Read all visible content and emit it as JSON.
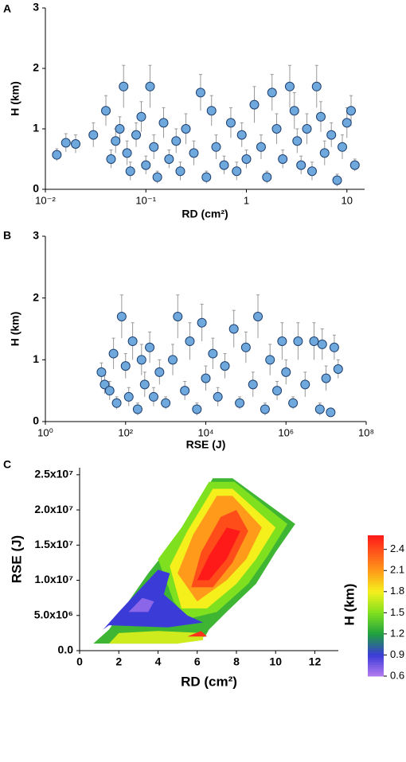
{
  "chart_data": [
    {
      "type": "scatter",
      "label": "A",
      "xlabel": "RD (cm²)",
      "ylabel": "H (km)",
      "xscale": "log",
      "xlim": [
        0.01,
        15
      ],
      "xticks": [
        {
          "value": 0.01,
          "label": "10⁻²"
        },
        {
          "value": 0.1,
          "label": "10⁻¹"
        },
        1,
        10
      ],
      "ylim": [
        0,
        3
      ],
      "yticks": [
        0,
        1,
        2,
        3
      ],
      "color": "#6fa8dc",
      "series": [
        {
          "x": [
            0.013,
            0.016,
            0.02,
            0.03,
            0.04,
            0.045,
            0.05,
            0.055,
            0.06,
            0.065,
            0.07,
            0.08,
            0.09,
            0.1,
            0.11,
            0.12,
            0.13,
            0.15,
            0.17,
            0.2,
            0.22,
            0.25,
            0.3,
            0.35,
            0.4,
            0.45,
            0.5,
            0.6,
            0.7,
            0.8,
            0.9,
            1.0,
            1.2,
            1.4,
            1.6,
            1.8,
            2.0,
            2.3,
            2.7,
            3.0,
            3.2,
            3.5,
            4.0,
            4.5,
            5.0,
            5.5,
            6.0,
            7.0,
            8.0,
            9.0,
            10.0,
            11.0,
            12.0
          ],
          "values": [
            0.57,
            0.77,
            0.75,
            0.9,
            1.3,
            0.5,
            0.8,
            1.0,
            1.7,
            0.6,
            0.3,
            0.9,
            1.2,
            0.4,
            1.7,
            0.7,
            0.2,
            1.1,
            0.5,
            0.8,
            0.3,
            1.0,
            0.6,
            1.6,
            0.2,
            1.3,
            0.7,
            0.4,
            1.1,
            0.3,
            0.9,
            0.5,
            1.4,
            0.7,
            0.2,
            1.6,
            1.0,
            0.5,
            1.7,
            1.3,
            0.8,
            0.4,
            1.0,
            0.3,
            1.7,
            1.2,
            0.6,
            0.9,
            0.15,
            0.7,
            1.1,
            1.3,
            0.4
          ],
          "errors": [
            0.1,
            0.15,
            0.15,
            0.2,
            0.25,
            0.15,
            0.2,
            0.2,
            0.35,
            0.2,
            0.15,
            0.2,
            0.25,
            0.15,
            0.35,
            0.2,
            0.1,
            0.25,
            0.15,
            0.2,
            0.15,
            0.25,
            0.2,
            0.3,
            0.1,
            0.25,
            0.2,
            0.15,
            0.25,
            0.15,
            0.2,
            0.15,
            0.3,
            0.2,
            0.1,
            0.3,
            0.25,
            0.15,
            0.35,
            0.3,
            0.2,
            0.15,
            0.25,
            0.15,
            0.35,
            0.25,
            0.2,
            0.2,
            0.1,
            0.2,
            0.25,
            0.25,
            0.1
          ]
        }
      ]
    },
    {
      "type": "scatter",
      "label": "B",
      "xlabel": "RSE (J)",
      "ylabel": "H (km)",
      "xscale": "log",
      "xlim": [
        1,
        100000000
      ],
      "xticks": [
        {
          "value": 1,
          "label": "10⁰"
        },
        {
          "value": 100,
          "label": "10²"
        },
        {
          "value": 10000,
          "label": "10⁴"
        },
        {
          "value": 1000000,
          "label": "10⁶"
        },
        {
          "value": 100000000,
          "label": "10⁸"
        }
      ],
      "ylim": [
        0,
        3
      ],
      "yticks": [
        0,
        1,
        2,
        3
      ],
      "color": "#6fa8dc",
      "series": [
        {
          "x": [
            25,
            30,
            40,
            50,
            60,
            80,
            100,
            120,
            150,
            200,
            250,
            300,
            400,
            500,
            700,
            1000,
            1500,
            2000,
            3000,
            4000,
            6000,
            8000,
            10000,
            15000,
            20000,
            30000,
            50000,
            70000,
            100000,
            150000,
            200000,
            300000,
            400000,
            600000,
            800000,
            1000000,
            1500000,
            2000000,
            3000000,
            5000000,
            7000000,
            8000000,
            10000000,
            13000000,
            16000000,
            20000000
          ],
          "values": [
            0.8,
            0.6,
            0.5,
            1.1,
            0.3,
            1.7,
            0.9,
            0.4,
            1.3,
            0.2,
            1.0,
            0.6,
            1.2,
            0.4,
            0.8,
            0.3,
            1.0,
            1.7,
            0.5,
            1.3,
            0.2,
            1.6,
            0.7,
            1.1,
            0.4,
            0.9,
            1.5,
            0.3,
            1.2,
            0.6,
            1.7,
            0.2,
            1.0,
            0.5,
            1.3,
            0.8,
            0.3,
            1.3,
            0.6,
            1.3,
            0.2,
            1.25,
            0.7,
            0.15,
            1.2,
            0.85
          ],
          "errors": [
            0.15,
            0.15,
            0.15,
            0.25,
            0.1,
            0.35,
            0.2,
            0.15,
            0.3,
            0.1,
            0.25,
            0.2,
            0.25,
            0.15,
            0.2,
            0.1,
            0.25,
            0.35,
            0.15,
            0.3,
            0.1,
            0.3,
            0.2,
            0.25,
            0.15,
            0.2,
            0.3,
            0.1,
            0.25,
            0.2,
            0.35,
            0.1,
            0.25,
            0.15,
            0.3,
            0.2,
            0.1,
            0.3,
            0.2,
            0.3,
            0.1,
            0.25,
            0.2,
            0.05,
            0.2,
            0.15
          ]
        }
      ]
    },
    {
      "type": "contour",
      "label": "C",
      "xlabel": "RD (cm²)",
      "ylabel": "RSE (J)",
      "xlim": [
        0,
        13.2
      ],
      "xticks": [
        0,
        2,
        4,
        6,
        8,
        10,
        12
      ],
      "ylim": [
        0,
        26000000
      ],
      "yticks": [
        {
          "value": 0,
          "label": "0.0"
        },
        {
          "value": 5000000,
          "label": "5.0x10⁶"
        },
        {
          "value": 10000000,
          "label": "1.0x10⁷"
        },
        {
          "value": 15000000,
          "label": "1.5x10⁷"
        },
        {
          "value": 20000000,
          "label": "2.0x10⁷"
        },
        {
          "value": 25000000,
          "label": "2.5x10⁷"
        }
      ],
      "colorbar": {
        "label": "H (km)",
        "lim": [
          0.6,
          2.6
        ],
        "ticks": [
          0.6,
          0.9,
          1.2,
          1.5,
          1.8,
          2.1,
          2.4
        ]
      },
      "regions": [
        {
          "level": 1.3,
          "rd": [
            0.7,
            1.5,
            2.5,
            3.5,
            4.5,
            5.5,
            6.8,
            7.8,
            11,
            10,
            9,
            7.5,
            6.6,
            6.4,
            5
          ],
          "rse": [
            1000000,
            3000000,
            7000000,
            11000000,
            14500000,
            18500000,
            24500000,
            24500000,
            18000000,
            14000000,
            9500000,
            5500000,
            3000000,
            2000000,
            1000000
          ]
        },
        {
          "level": 1.5,
          "rd": [
            4,
            5.2,
            6.6,
            7.9,
            10.6,
            9.6,
            8.6,
            7,
            5.5,
            4.8
          ],
          "rse": [
            13000000,
            17500000,
            24000000,
            24000000,
            18000000,
            13500000,
            9500000,
            5500000,
            4500000,
            7000000
          ]
        },
        {
          "level": 1.8,
          "rd": [
            4.6,
            5.5,
            6.8,
            7.8,
            10,
            9,
            8,
            6.5,
            5.2
          ],
          "rse": [
            12000000,
            17000000,
            23000000,
            23000000,
            17500000,
            13000000,
            9500000,
            6000000,
            6000000
          ]
        },
        {
          "level": 2.1,
          "rd": [
            5,
            5.8,
            7,
            7.8,
            9.3,
            8.5,
            7.5,
            6
          ],
          "rse": [
            11000000,
            16500000,
            22000000,
            22000000,
            17500000,
            13000000,
            10000000,
            7000000
          ]
        },
        {
          "level": 2.4,
          "rd": [
            5.7,
            6.2,
            7.2,
            8,
            8.6,
            7.8,
            6.8
          ],
          "rse": [
            9000000,
            14000000,
            19000000,
            20000000,
            17000000,
            12500000,
            9000000
          ]
        },
        {
          "level": 2.6,
          "rd": [
            6,
            6.6,
            7.5,
            8.2,
            7.5,
            6.6
          ],
          "rse": [
            10000000,
            13500000,
            17500000,
            17000000,
            13000000,
            10000000
          ]
        },
        {
          "level": 0.9,
          "rd": [
            1.2,
            2,
            3,
            4,
            4.6,
            4.3,
            5.5,
            6.3,
            4.5,
            1.5
          ],
          "rse": [
            3000000,
            5500000,
            8500000,
            11500000,
            11000000,
            8000000,
            5000000,
            4000000,
            3300000,
            3600000
          ]
        },
        {
          "level": 0.7,
          "rd": [
            2.5,
            3.2,
            3.8,
            3.5
          ],
          "rse": [
            5500000,
            7500000,
            7000000,
            5500000
          ]
        },
        {
          "level": 1.7,
          "rd": [
            1.5,
            2,
            4,
            6.3,
            6.3,
            5
          ],
          "rse": [
            1000000,
            2500000,
            2800000,
            2500000,
            1500000,
            1000000
          ]
        },
        {
          "level": 2.5,
          "rd": [
            5.5,
            6.2,
            6.5
          ],
          "rse": [
            2000000,
            2800000,
            2000000
          ]
        }
      ]
    }
  ]
}
